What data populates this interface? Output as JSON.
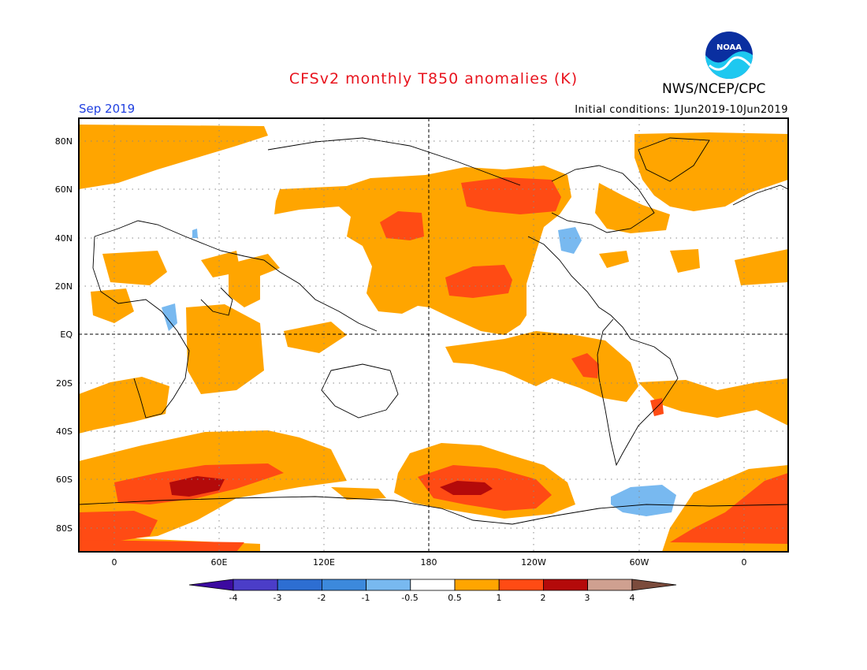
{
  "header": {
    "title": "CFSv2 monthly T850 anomalies (K)",
    "organization": "NWS/NCEP/CPC",
    "valid_month": "Sep 2019",
    "initial_conditions": "Initial conditions: 1Jun2019-10Jun2019",
    "logo_text": "NOAA"
  },
  "map": {
    "latitude_labels": [
      "80N",
      "60N",
      "40N",
      "20N",
      "EQ",
      "20S",
      "40S",
      "60S",
      "80S"
    ],
    "longitude_labels": [
      "0",
      "60E",
      "120E",
      "180",
      "120W",
      "60W",
      "0"
    ],
    "colors": {
      "neg4": "#3c0aa0",
      "neg3": "#4b3dc8",
      "neg2": "#2d6ed2",
      "neg1": "#4b96ea",
      "neg05": "#78b9f0",
      "neutral": "#ffffff",
      "pos05": "#ffa500",
      "pos1": "#ff4b14",
      "pos2": "#b40a0a",
      "pos3": "#cfa090",
      "pos4": "#7b4b3c",
      "land_outline": "#000000",
      "grid": "#888888"
    }
  },
  "colorbar": {
    "tick_labels": [
      "-4",
      "-3",
      "-2",
      "-1",
      "-0.5",
      "0.5",
      "1",
      "2",
      "3",
      "4"
    ],
    "bins": [
      {
        "color": "#4b3dc8"
      },
      {
        "color": "#2d6ed2"
      },
      {
        "color": "#3c89dc"
      },
      {
        "color": "#78b9f0"
      },
      {
        "color": "#ffffff"
      },
      {
        "color": "#ffa500"
      },
      {
        "color": "#ff4b14"
      },
      {
        "color": "#b40a0a"
      },
      {
        "color": "#cfa090"
      }
    ],
    "low_end_color": "#3c0aa0",
    "high_end_color": "#7b4b3c"
  }
}
